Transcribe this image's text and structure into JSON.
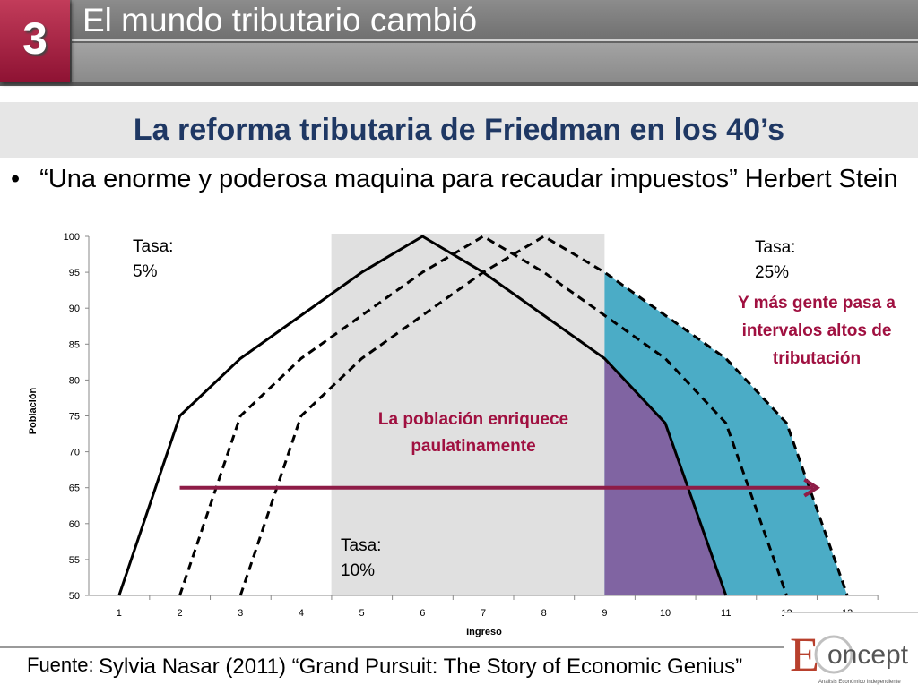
{
  "slide": {
    "number": "3",
    "title": "El mundo tributario cambió",
    "subtitle": "La reforma tributaria de Friedman en los 40’s",
    "bullet": "“Una enorme y poderosa maquina para recaudar impuestos” Herbert Stein",
    "source_label": "Fuente:",
    "source_text": "Sylvia Nasar  (2011) “Grand Pursuit: The Story of Economic Genius”"
  },
  "logo": {
    "text": "EConcept",
    "tagline": "Análisis Económico Independiente"
  },
  "chart_data": {
    "type": "line",
    "xlabel": "Ingreso",
    "ylabel": "Población",
    "xlim": [
      1,
      13
    ],
    "ylim": [
      50,
      100
    ],
    "x_ticks": [
      1,
      2,
      3,
      4,
      5,
      6,
      7,
      8,
      9,
      10,
      11,
      12,
      13
    ],
    "y_ticks": [
      50,
      55,
      60,
      65,
      70,
      75,
      80,
      85,
      90,
      95,
      100
    ],
    "series": [
      {
        "style": "solid",
        "x": [
          1,
          2,
          3,
          4,
          5,
          6,
          7,
          8,
          9,
          10,
          11
        ],
        "y": [
          50,
          75,
          83,
          89,
          95,
          100,
          95,
          89,
          83,
          74,
          50
        ]
      },
      {
        "style": "dashed",
        "x": [
          2,
          3,
          4,
          5,
          6,
          7,
          8,
          9,
          10,
          11,
          12
        ],
        "y": [
          50,
          75,
          83,
          89,
          95,
          100,
          95,
          89,
          83,
          74,
          50
        ]
      },
      {
        "style": "dashed",
        "x": [
          3,
          4,
          5,
          6,
          7,
          8,
          9,
          10,
          11,
          12,
          13
        ],
        "y": [
          50,
          75,
          83,
          89,
          95,
          100,
          95,
          89,
          83,
          74,
          50
        ]
      }
    ],
    "bands": [
      {
        "from": 5,
        "to": 9,
        "color": "#e0e0e0"
      }
    ],
    "fills": [
      {
        "color": "#4bacc6",
        "from_x": 9
      },
      {
        "color": "#8064a2",
        "from_x": 9
      }
    ],
    "annotations": {
      "tasa5": [
        "Tasa:",
        "5%"
      ],
      "tasa10": [
        "Tasa:",
        "10%"
      ],
      "tasa25": [
        "Tasa:",
        "25%"
      ],
      "middle": [
        "La población enriquece",
        "paulatinamente"
      ],
      "right": [
        "Y más gente pasa a",
        "intervalos altos de",
        "tributación"
      ]
    },
    "arrow": {
      "from_x": 2,
      "to_x": 12.5,
      "y": 65
    },
    "colors": {
      "curve": "#000000",
      "arrow": "#8e1c47",
      "accent_text": "#a01040"
    }
  }
}
